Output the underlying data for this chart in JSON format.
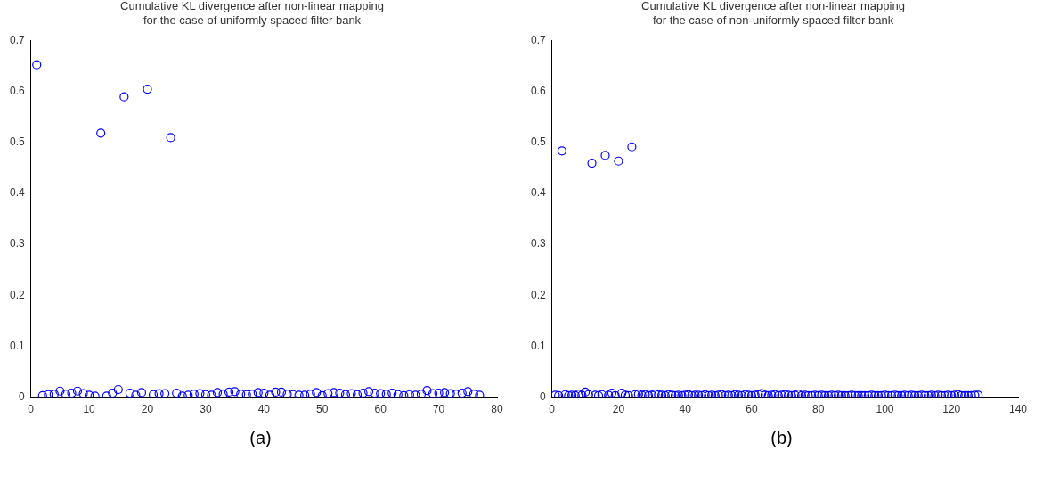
{
  "chart_data": [
    {
      "type": "scatter",
      "title": "Cumulative KL divergence after non-linear mapping\nfor the case of uniformly spaced filter bank",
      "marker": "circle",
      "grid": false,
      "legend": false,
      "xlim": [
        0,
        80
      ],
      "xticks": [
        0,
        10,
        20,
        30,
        40,
        50,
        60,
        70,
        80
      ],
      "ylim": [
        0,
        0.7
      ],
      "yticks": [
        0,
        0.1,
        0.2,
        0.3,
        0.4,
        0.5,
        0.6,
        0.7
      ],
      "annotations": [
        "(a)"
      ],
      "x": [
        1,
        2,
        3,
        4,
        5,
        6,
        7,
        8,
        9,
        10,
        11,
        12,
        13,
        14,
        15,
        16,
        17,
        18,
        19,
        20,
        21,
        22,
        23,
        24,
        25,
        26,
        27,
        28,
        29,
        30,
        31,
        32,
        33,
        34,
        35,
        36,
        37,
        38,
        39,
        40,
        41,
        42,
        43,
        44,
        45,
        46,
        47,
        48,
        49,
        50,
        51,
        52,
        53,
        54,
        55,
        56,
        57,
        58,
        59,
        60,
        61,
        62,
        63,
        64,
        65,
        66,
        67,
        68,
        69,
        70,
        71,
        72,
        73,
        74,
        75,
        76,
        77
      ],
      "series": [
        {
          "color": "#0000ff",
          "values": [
            0.652,
            0.003,
            0.005,
            0.006,
            0.012,
            0.006,
            0.008,
            0.012,
            0.007,
            0.004,
            0.002,
            0.518,
            0.002,
            0.008,
            0.015,
            0.589,
            0.008,
            0.004,
            0.009,
            0.604,
            0.005,
            0.007,
            0.007,
            0.509,
            0.008,
            0.002,
            0.004,
            0.006,
            0.007,
            0.005,
            0.004,
            0.009,
            0.006,
            0.01,
            0.011,
            0.006,
            0.005,
            0.006,
            0.009,
            0.008,
            0.004,
            0.01,
            0.01,
            0.006,
            0.005,
            0.004,
            0.004,
            0.006,
            0.009,
            0.003,
            0.007,
            0.009,
            0.008,
            0.005,
            0.007,
            0.005,
            0.008,
            0.011,
            0.008,
            0.007,
            0.006,
            0.008,
            0.005,
            0.003,
            0.005,
            0.004,
            0.006,
            0.013,
            0.007,
            0.008,
            0.009,
            0.007,
            0.006,
            0.008,
            0.011,
            0.006,
            0.004
          ]
        }
      ]
    },
    {
      "type": "scatter",
      "title": "Cumulative KL divergence after non-linear mapping\nfor the case of non-uniformly spaced filter bank",
      "marker": "circle",
      "grid": false,
      "legend": false,
      "xlim": [
        0,
        140
      ],
      "xticks": [
        0,
        20,
        40,
        60,
        80,
        100,
        120,
        140
      ],
      "ylim": [
        0,
        0.7
      ],
      "yticks": [
        0,
        0.1,
        0.2,
        0.3,
        0.4,
        0.5,
        0.6,
        0.7
      ],
      "annotations": [
        "(b)"
      ],
      "x": [
        1,
        2,
        3,
        4,
        5,
        6,
        7,
        8,
        9,
        10,
        11,
        12,
        13,
        14,
        15,
        16,
        17,
        18,
        19,
        20,
        21,
        22,
        23,
        24,
        25,
        26,
        27,
        28,
        29,
        30,
        31,
        32,
        33,
        34,
        35,
        36,
        37,
        38,
        39,
        40,
        41,
        42,
        43,
        44,
        45,
        46,
        47,
        48,
        49,
        50,
        51,
        52,
        53,
        54,
        55,
        56,
        57,
        58,
        59,
        60,
        61,
        62,
        63,
        64,
        65,
        66,
        67,
        68,
        69,
        70,
        71,
        72,
        73,
        74,
        75,
        76,
        77,
        78,
        79,
        80,
        81,
        82,
        83,
        84,
        85,
        86,
        87,
        88,
        89,
        90,
        91,
        92,
        93,
        94,
        95,
        96,
        97,
        98,
        99,
        100,
        101,
        102,
        103,
        104,
        105,
        106,
        107,
        108,
        109,
        110,
        111,
        112,
        113,
        114,
        115,
        116,
        117,
        118,
        119,
        120,
        121,
        122,
        123,
        124,
        125,
        126,
        127,
        128
      ],
      "series": [
        {
          "color": "#0000ff",
          "values": [
            0.004,
            0.003,
            0.483,
            0.005,
            0.003,
            0.004,
            0.003,
            0.006,
            0.004,
            0.01,
            0.005,
            0.459,
            0.004,
            0.003,
            0.005,
            0.474,
            0.004,
            0.008,
            0.003,
            0.463,
            0.008,
            0.004,
            0.003,
            0.491,
            0.005,
            0.006,
            0.004,
            0.005,
            0.003,
            0.004,
            0.006,
            0.005,
            0.004,
            0.003,
            0.005,
            0.004,
            0.003,
            0.004,
            0.003,
            0.004,
            0.005,
            0.003,
            0.004,
            0.004,
            0.003,
            0.005,
            0.003,
            0.004,
            0.003,
            0.004,
            0.005,
            0.003,
            0.004,
            0.003,
            0.005,
            0.004,
            0.003,
            0.005,
            0.004,
            0.003,
            0.004,
            0.005,
            0.007,
            0.004,
            0.003,
            0.004,
            0.005,
            0.003,
            0.004,
            0.005,
            0.004,
            0.003,
            0.004,
            0.006,
            0.003,
            0.004,
            0.003,
            0.003,
            0.004,
            0.003,
            0.004,
            0.003,
            0.003,
            0.004,
            0.003,
            0.004,
            0.003,
            0.003,
            0.003,
            0.004,
            0.003,
            0.003,
            0.003,
            0.003,
            0.003,
            0.004,
            0.003,
            0.003,
            0.003,
            0.004,
            0.003,
            0.003,
            0.004,
            0.003,
            0.003,
            0.004,
            0.003,
            0.004,
            0.003,
            0.003,
            0.004,
            0.003,
            0.003,
            0.004,
            0.003,
            0.004,
            0.003,
            0.003,
            0.004,
            0.003,
            0.004,
            0.005,
            0.003,
            0.003,
            0.003,
            0.003,
            0.004,
            0.004
          ]
        }
      ]
    }
  ]
}
